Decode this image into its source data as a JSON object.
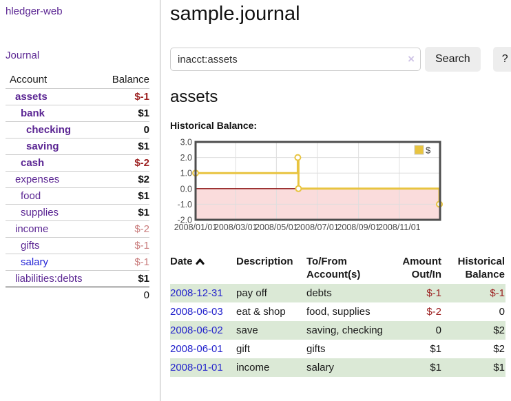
{
  "colors": {
    "purple": "#5b2693",
    "blue_link": "#2323d6",
    "date_link": "#2323cc",
    "dark_red": "#9c2121",
    "light_red": "#c97c7c",
    "gold": "#e8c440",
    "pink_fill": "#fadcdc",
    "zero_line": "#8b1010",
    "grid": "#dedede",
    "chart_border": "#4d4d4d",
    "row_green": "#dbe9d6"
  },
  "sidebar": {
    "brand": "hledger-web",
    "nav_journal": "Journal",
    "columns": {
      "account": "Account",
      "balance": "Balance"
    },
    "accounts": [
      {
        "name": "assets",
        "balance": "$-1",
        "indent": 1,
        "bold": true,
        "name_color": "purple",
        "balance_color": "dark_red"
      },
      {
        "name": "bank",
        "balance": "$1",
        "indent": 2,
        "bold": true,
        "name_color": "purple",
        "balance_color": "black"
      },
      {
        "name": "checking",
        "balance": "0",
        "indent": 3,
        "bold": true,
        "name_color": "purple",
        "balance_color": "black"
      },
      {
        "name": "saving",
        "balance": "$1",
        "indent": 3,
        "bold": true,
        "name_color": "purple",
        "balance_color": "black"
      },
      {
        "name": "cash",
        "balance": "$-2",
        "indent": 2,
        "bold": true,
        "name_color": "purple",
        "balance_color": "dark_red"
      },
      {
        "name": "expenses",
        "balance": "$2",
        "indent": 1,
        "bold": false,
        "name_color": "purple",
        "balance_color": "black"
      },
      {
        "name": "food",
        "balance": "$1",
        "indent": 2,
        "bold": false,
        "name_color": "purple",
        "balance_color": "black"
      },
      {
        "name": "supplies",
        "balance": "$1",
        "indent": 2,
        "bold": false,
        "name_color": "purple",
        "balance_color": "black"
      },
      {
        "name": "income",
        "balance": "$-2",
        "indent": 1,
        "bold": false,
        "name_color": "purple",
        "balance_color": "light_red"
      },
      {
        "name": "gifts",
        "balance": "$-1",
        "indent": 2,
        "bold": false,
        "name_color": "purple",
        "balance_color": "light_red"
      },
      {
        "name": "salary",
        "balance": "$-1",
        "indent": 2,
        "bold": false,
        "name_color": "blue",
        "balance_color": "light_red"
      },
      {
        "name": "liabilities:debts",
        "balance": "$1",
        "indent": 1,
        "bold": false,
        "name_color": "purple",
        "balance_color": "black"
      }
    ],
    "total": "0"
  },
  "main": {
    "title": "sample.journal",
    "search": {
      "value": "inacct:assets",
      "clear_icon": "×",
      "button": "Search",
      "help_button": "?"
    },
    "account_heading": "assets",
    "chart_label": "Historical Balance:"
  },
  "chart_data": {
    "type": "line",
    "step": true,
    "title": "Historical Balance",
    "series": [
      {
        "name": "$",
        "points": [
          [
            "2008-01-01",
            1
          ],
          [
            "2008-06-02",
            2
          ],
          [
            "2008-06-03",
            0
          ],
          [
            "2008-12-31",
            -1
          ]
        ]
      }
    ],
    "x_range": [
      "2008-01-01",
      "2009-01-01"
    ],
    "x_ticks": [
      "2008/01/01",
      "2008/03/01",
      "2008/05/01",
      "2008/07/01",
      "2008/09/01",
      "2008/11/01"
    ],
    "y_range": [
      -2,
      3
    ],
    "y_ticks": [
      3.0,
      2.0,
      1.0,
      0.0,
      -1.0,
      -2.0
    ],
    "grid": true,
    "legend": {
      "label": "$",
      "position": "top-right"
    },
    "negative_region_shaded": true
  },
  "register": {
    "headers": {
      "date": "Date",
      "description": "Description",
      "accounts": "To/From Account(s)",
      "amount": "Amount Out/In",
      "balance": "Historical Balance"
    },
    "rows": [
      {
        "date": "2008-12-31",
        "description": "pay off",
        "accounts": "debts",
        "amount": "$-1",
        "amount_neg": true,
        "balance": "$-1",
        "balance_neg": true
      },
      {
        "date": "2008-06-03",
        "description": "eat & shop",
        "accounts": "food, supplies",
        "amount": "$-2",
        "amount_neg": true,
        "balance": "0",
        "balance_neg": false
      },
      {
        "date": "2008-06-02",
        "description": "save",
        "accounts": "saving, checking",
        "amount": "0",
        "amount_neg": false,
        "balance": "$2",
        "balance_neg": false
      },
      {
        "date": "2008-06-01",
        "description": "gift",
        "accounts": "gifts",
        "amount": "$1",
        "amount_neg": false,
        "balance": "$2",
        "balance_neg": false
      },
      {
        "date": "2008-01-01",
        "description": "income",
        "accounts": "salary",
        "amount": "$1",
        "amount_neg": false,
        "balance": "$1",
        "balance_neg": false
      }
    ]
  }
}
